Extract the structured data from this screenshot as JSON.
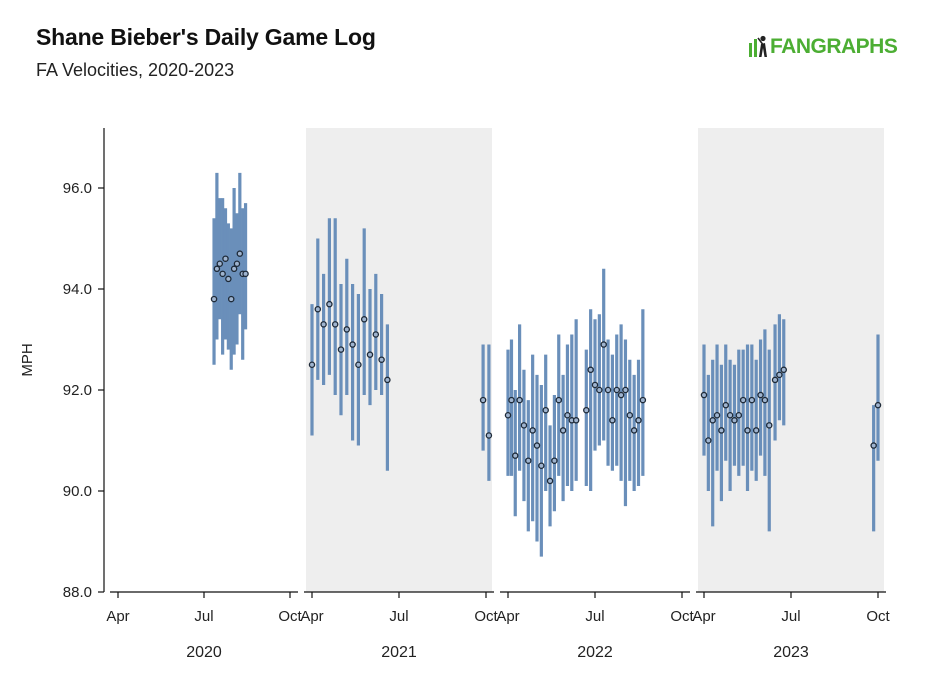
{
  "header": {
    "title": "Shane Bieber's Daily Game Log",
    "subtitle": "FA Velocities, 2020-2023",
    "logo_text": "FANGRAPHS",
    "logo_color": "#4cae33"
  },
  "chart_data": {
    "type": "range-dot",
    "ylabel": "MPH",
    "ylim": [
      88,
      97.2
    ],
    "yticks": [
      "88.0",
      "90.0",
      "92.0",
      "94.0",
      "96.0"
    ],
    "month_ticks": [
      "Apr",
      "Jul",
      "Oct"
    ],
    "colors": {
      "bar": "#6a8fba",
      "dot": "#1e2a38",
      "panel_shade": "#eeeeee",
      "axis": "#111111"
    },
    "panels": [
      {
        "year": "2020",
        "shaded": false,
        "games": [
          {
            "month": 7.35,
            "avg": 93.8,
            "low": 92.5,
            "high": 95.4
          },
          {
            "month": 7.45,
            "avg": 94.4,
            "low": 93.0,
            "high": 96.3
          },
          {
            "month": 7.55,
            "avg": 94.5,
            "low": 93.4,
            "high": 95.8
          },
          {
            "month": 7.65,
            "avg": 94.3,
            "low": 92.7,
            "high": 95.8
          },
          {
            "month": 7.75,
            "avg": 94.6,
            "low": 93.0,
            "high": 95.6
          },
          {
            "month": 7.85,
            "avg": 94.2,
            "low": 92.8,
            "high": 95.3
          },
          {
            "month": 7.95,
            "avg": 93.8,
            "low": 92.4,
            "high": 95.2
          },
          {
            "month": 8.05,
            "avg": 94.4,
            "low": 92.7,
            "high": 96.0
          },
          {
            "month": 8.15,
            "avg": 94.5,
            "low": 92.9,
            "high": 95.5
          },
          {
            "month": 8.25,
            "avg": 94.7,
            "low": 93.5,
            "high": 96.3
          },
          {
            "month": 8.35,
            "avg": 94.3,
            "low": 92.6,
            "high": 95.6
          },
          {
            "month": 8.45,
            "avg": 94.3,
            "low": 93.2,
            "high": 95.7
          }
        ]
      },
      {
        "year": "2021",
        "shaded": true,
        "games": [
          {
            "month": 4.0,
            "avg": 92.5,
            "low": 91.1,
            "high": 93.7
          },
          {
            "month": 4.2,
            "avg": 93.6,
            "low": 92.2,
            "high": 95.0
          },
          {
            "month": 4.4,
            "avg": 93.3,
            "low": 92.1,
            "high": 94.3
          },
          {
            "month": 4.6,
            "avg": 93.7,
            "low": 92.3,
            "high": 95.4
          },
          {
            "month": 4.8,
            "avg": 93.3,
            "low": 91.9,
            "high": 95.4
          },
          {
            "month": 5.0,
            "avg": 92.8,
            "low": 91.5,
            "high": 94.1
          },
          {
            "month": 5.2,
            "avg": 93.2,
            "low": 91.9,
            "high": 94.6
          },
          {
            "month": 5.4,
            "avg": 92.9,
            "low": 91.0,
            "high": 94.1
          },
          {
            "month": 5.6,
            "avg": 92.5,
            "low": 90.9,
            "high": 93.9
          },
          {
            "month": 5.8,
            "avg": 93.4,
            "low": 91.9,
            "high": 95.2
          },
          {
            "month": 6.0,
            "avg": 92.7,
            "low": 91.7,
            "high": 94.0
          },
          {
            "month": 6.2,
            "avg": 93.1,
            "low": 92.0,
            "high": 94.3
          },
          {
            "month": 6.4,
            "avg": 92.6,
            "low": 91.9,
            "high": 93.9
          },
          {
            "month": 6.6,
            "avg": 92.2,
            "low": 90.4,
            "high": 93.3
          },
          {
            "month": 9.9,
            "avg": 91.8,
            "low": 90.8,
            "high": 92.9
          },
          {
            "month": 10.1,
            "avg": 91.1,
            "low": 90.2,
            "high": 92.9
          }
        ]
      },
      {
        "year": "2022",
        "shaded": false,
        "games": [
          {
            "month": 4.0,
            "avg": 91.5,
            "low": 90.3,
            "high": 92.8
          },
          {
            "month": 4.12,
            "avg": 91.8,
            "low": 90.3,
            "high": 93.0
          },
          {
            "month": 4.25,
            "avg": 90.7,
            "low": 89.5,
            "high": 92.0
          },
          {
            "month": 4.4,
            "avg": 91.8,
            "low": 90.4,
            "high": 93.3
          },
          {
            "month": 4.55,
            "avg": 91.3,
            "low": 89.8,
            "high": 92.4
          },
          {
            "month": 4.7,
            "avg": 90.6,
            "low": 89.2,
            "high": 91.8
          },
          {
            "month": 4.85,
            "avg": 91.2,
            "low": 89.4,
            "high": 92.7
          },
          {
            "month": 5.0,
            "avg": 90.9,
            "low": 89.0,
            "high": 92.3
          },
          {
            "month": 5.15,
            "avg": 90.5,
            "low": 88.7,
            "high": 92.1
          },
          {
            "month": 5.3,
            "avg": 91.6,
            "low": 90.0,
            "high": 92.7
          },
          {
            "month": 5.45,
            "avg": 90.2,
            "low": 89.3,
            "high": 91.3
          },
          {
            "month": 5.6,
            "avg": 90.6,
            "low": 89.6,
            "high": 91.9
          },
          {
            "month": 5.75,
            "avg": 91.8,
            "low": 90.3,
            "high": 93.1
          },
          {
            "month": 5.9,
            "avg": 91.2,
            "low": 89.8,
            "high": 92.3
          },
          {
            "month": 6.05,
            "avg": 91.5,
            "low": 90.1,
            "high": 92.9
          },
          {
            "month": 6.2,
            "avg": 91.4,
            "low": 90.0,
            "high": 93.1
          },
          {
            "month": 6.35,
            "avg": 91.4,
            "low": 90.2,
            "high": 93.4
          },
          {
            "month": 6.7,
            "avg": 91.6,
            "low": 90.1,
            "high": 92.8
          },
          {
            "month": 6.85,
            "avg": 92.4,
            "low": 90.0,
            "high": 93.6
          },
          {
            "month": 7.0,
            "avg": 92.1,
            "low": 90.8,
            "high": 93.4
          },
          {
            "month": 7.15,
            "avg": 92.0,
            "low": 90.9,
            "high": 93.5
          },
          {
            "month": 7.3,
            "avg": 92.9,
            "low": 91.0,
            "high": 94.4
          },
          {
            "month": 7.45,
            "avg": 92.0,
            "low": 90.5,
            "high": 93.0
          },
          {
            "month": 7.6,
            "avg": 91.4,
            "low": 90.4,
            "high": 92.7
          },
          {
            "month": 7.75,
            "avg": 92.0,
            "low": 90.5,
            "high": 93.1
          },
          {
            "month": 7.9,
            "avg": 91.9,
            "low": 90.2,
            "high": 93.3
          },
          {
            "month": 8.05,
            "avg": 92.0,
            "low": 89.7,
            "high": 93.0
          },
          {
            "month": 8.2,
            "avg": 91.5,
            "low": 90.2,
            "high": 92.6
          },
          {
            "month": 8.35,
            "avg": 91.2,
            "low": 90.0,
            "high": 92.3
          },
          {
            "month": 8.5,
            "avg": 91.4,
            "low": 90.1,
            "high": 92.6
          },
          {
            "month": 8.65,
            "avg": 91.8,
            "low": 90.3,
            "high": 93.6
          }
        ]
      },
      {
        "year": "2023",
        "shaded": true,
        "games": [
          {
            "month": 4.0,
            "avg": 91.9,
            "low": 90.7,
            "high": 92.9
          },
          {
            "month": 4.15,
            "avg": 91.0,
            "low": 90.0,
            "high": 92.3
          },
          {
            "month": 4.3,
            "avg": 91.4,
            "low": 89.3,
            "high": 92.6
          },
          {
            "month": 4.45,
            "avg": 91.5,
            "low": 90.4,
            "high": 92.9
          },
          {
            "month": 4.6,
            "avg": 91.2,
            "low": 89.8,
            "high": 92.5
          },
          {
            "month": 4.75,
            "avg": 91.7,
            "low": 90.6,
            "high": 92.9
          },
          {
            "month": 4.9,
            "avg": 91.5,
            "low": 90.0,
            "high": 92.6
          },
          {
            "month": 5.05,
            "avg": 91.4,
            "low": 90.5,
            "high": 92.5
          },
          {
            "month": 5.2,
            "avg": 91.5,
            "low": 90.3,
            "high": 92.8
          },
          {
            "month": 5.35,
            "avg": 91.8,
            "low": 90.5,
            "high": 92.8
          },
          {
            "month": 5.5,
            "avg": 91.2,
            "low": 90.0,
            "high": 92.9
          },
          {
            "month": 5.65,
            "avg": 91.8,
            "low": 90.4,
            "high": 92.9
          },
          {
            "month": 5.8,
            "avg": 91.2,
            "low": 90.2,
            "high": 92.6
          },
          {
            "month": 5.95,
            "avg": 91.9,
            "low": 90.7,
            "high": 93.0
          },
          {
            "month": 6.1,
            "avg": 91.8,
            "low": 90.3,
            "high": 93.2
          },
          {
            "month": 6.25,
            "avg": 91.3,
            "low": 89.2,
            "high": 92.8
          },
          {
            "month": 6.45,
            "avg": 92.2,
            "low": 91.0,
            "high": 93.3
          },
          {
            "month": 6.6,
            "avg": 92.3,
            "low": 91.4,
            "high": 93.5
          },
          {
            "month": 6.75,
            "avg": 92.4,
            "low": 91.3,
            "high": 93.4
          },
          {
            "month": 9.85,
            "avg": 90.9,
            "low": 89.2,
            "high": 91.7
          },
          {
            "month": 10.0,
            "avg": 91.7,
            "low": 90.6,
            "high": 93.1
          }
        ]
      }
    ]
  }
}
